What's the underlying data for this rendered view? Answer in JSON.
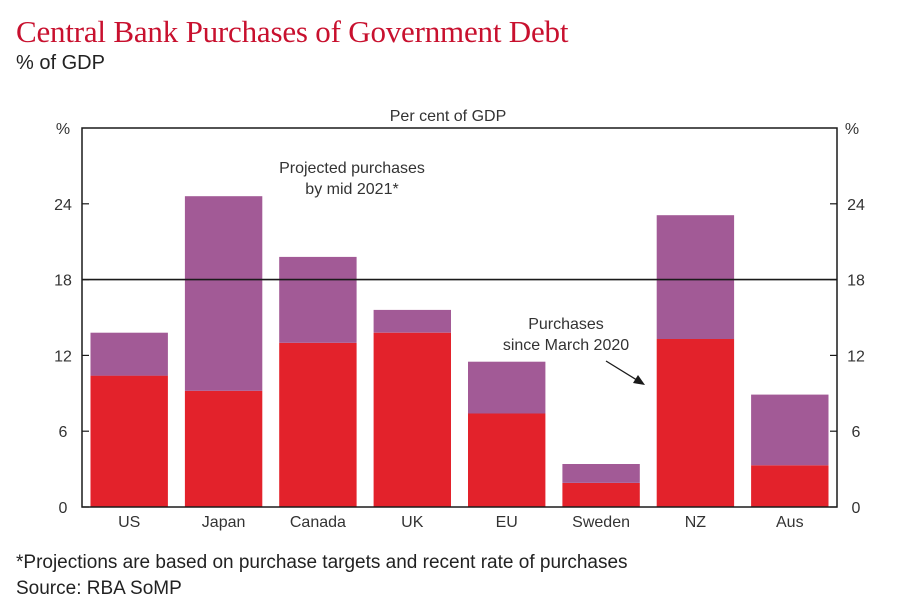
{
  "header": {
    "title": "Central Bank Purchases of Government Debt",
    "subtitle": "% of GDP"
  },
  "footer": {
    "footnote": "*Projections are based on purchase targets and recent rate of purchases",
    "source": "Source: RBA SoMP"
  },
  "colors": {
    "since_march": "#e3222b",
    "projected": "#a25a96",
    "axis": "#1a1a1a",
    "text": "#333333"
  },
  "chart_data": {
    "type": "bar",
    "stacked": true,
    "title": "Per cent of GDP",
    "ylabel_left": "%",
    "ylabel_right": "%",
    "ylim": [
      0,
      30
    ],
    "yticks": [
      0,
      6,
      12,
      18,
      24
    ],
    "reference_line": 18,
    "categories": [
      "US",
      "Japan",
      "Canada",
      "UK",
      "EU",
      "Sweden",
      "NZ",
      "Aus"
    ],
    "series": [
      {
        "key": "since_march",
        "values": [
          10.4,
          9.2,
          13.0,
          13.8,
          7.4,
          1.9,
          13.3,
          3.3
        ]
      },
      {
        "key": "projected",
        "values": [
          3.4,
          15.4,
          6.8,
          1.8,
          4.1,
          1.5,
          9.8,
          5.6
        ]
      }
    ],
    "annotations": [
      {
        "key": "projected",
        "lines": [
          "Projected purchases",
          "by mid 2021*"
        ]
      },
      {
        "key": "since_march",
        "lines": [
          "Purchases",
          "since March 2020"
        ]
      }
    ]
  }
}
